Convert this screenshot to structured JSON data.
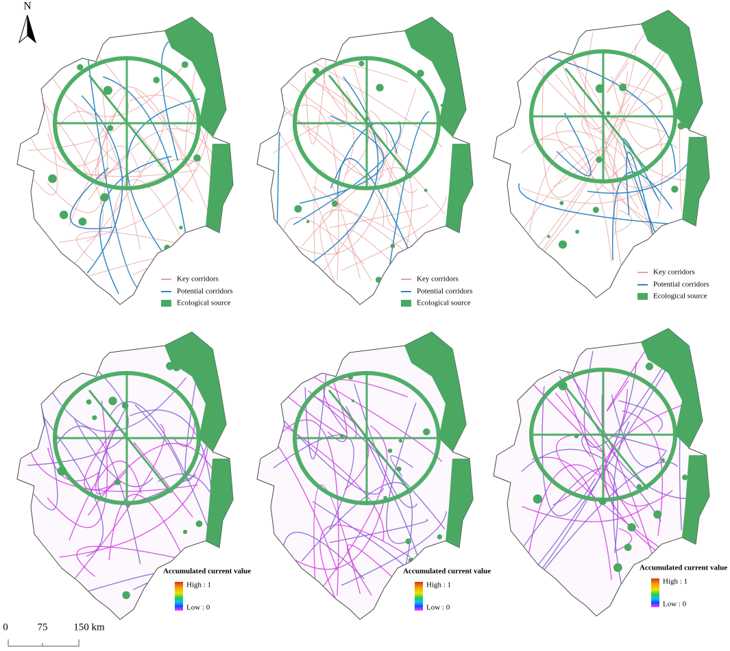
{
  "north_arrow": "N",
  "panels": [
    {
      "legend": {
        "items": [
          "Key corridors",
          "Potential corridors",
          "Ecological source"
        ]
      }
    },
    {
      "legend": {
        "items": [
          "Key corridors",
          "Potential corridors",
          "Ecological source"
        ]
      }
    },
    {
      "legend": {
        "items": [
          "Key corridors",
          "Potential corridors",
          "Ecological source"
        ]
      }
    },
    {
      "legend": {
        "title": "Accumulated current value",
        "high": "High : 1",
        "low": "Low : 0"
      }
    },
    {
      "legend": {
        "title": "Accumulated current value",
        "high": "High : 1",
        "low": "Low : 0"
      }
    },
    {
      "legend": {
        "title": "Accumulated current value",
        "high": "High : 1",
        "low": "Low : 0"
      }
    }
  ],
  "scale_bar": [
    "0",
    "75",
    "150 km"
  ]
}
